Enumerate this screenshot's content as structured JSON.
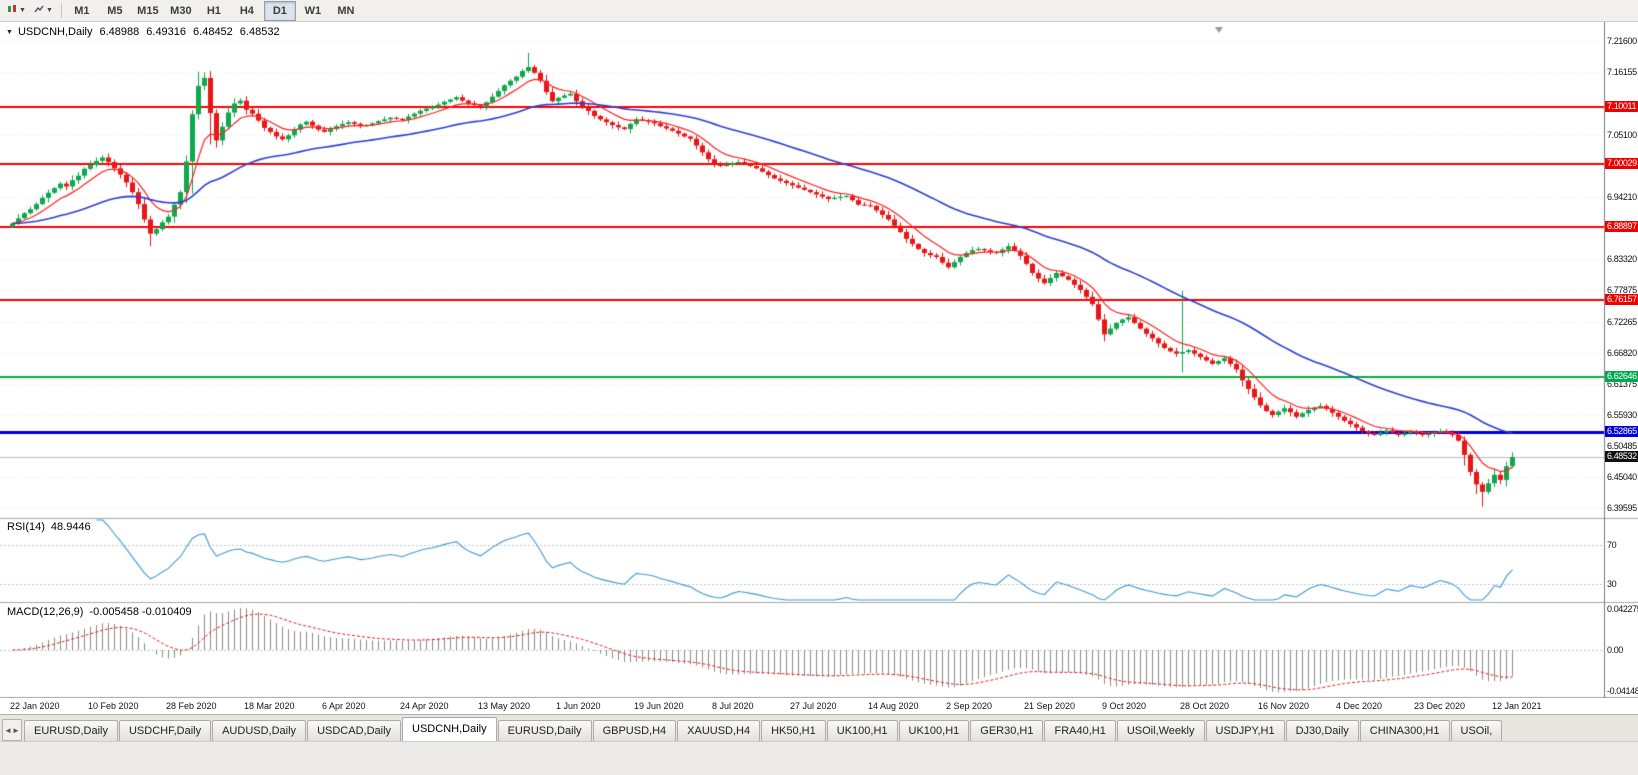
{
  "toolbar": {
    "timeframes": [
      {
        "label": "M1",
        "active": false
      },
      {
        "label": "M5",
        "active": false
      },
      {
        "label": "M15",
        "active": false
      },
      {
        "label": "M30",
        "active": false
      },
      {
        "label": "H1",
        "active": false
      },
      {
        "label": "H4",
        "active": false
      },
      {
        "label": "D1",
        "active": true
      },
      {
        "label": "W1",
        "active": false
      },
      {
        "label": "MN",
        "active": false
      }
    ]
  },
  "chart_header": {
    "dropdown_icon": "▼",
    "symbol": "USDCNH,Daily",
    "open": "6.48988",
    "high": "6.49316",
    "low": "6.48452",
    "close": "6.48532"
  },
  "price_axis": {
    "ticks": [
      "7.21600",
      "7.16155",
      "7.05100",
      "6.94210",
      "6.83320",
      "6.77875",
      "6.72265",
      "6.66820",
      "6.61375",
      "6.55930",
      "6.50485",
      "6.45040",
      "6.39595"
    ],
    "tags": [
      {
        "label": "7.10011",
        "value": 7.10011,
        "bg": "#ee0000",
        "kind": "level"
      },
      {
        "label": "7.00029",
        "value": 7.00029,
        "bg": "#ee0000",
        "kind": "level"
      },
      {
        "label": "6.88897",
        "value": 6.88897,
        "bg": "#ee0000",
        "kind": "level"
      },
      {
        "label": "6.76157",
        "value": 6.76157,
        "bg": "#ee0000",
        "kind": "level"
      },
      {
        "label": "6.62646",
        "value": 6.62646,
        "bg": "#00a94f",
        "kind": "level"
      },
      {
        "label": "6.52865",
        "value": 6.52865,
        "bg": "#0000dc",
        "kind": "level"
      },
      {
        "label": "6.48532",
        "value": 6.48532,
        "bg": "#101010",
        "kind": "current"
      }
    ]
  },
  "chart_data": {
    "type": "candlestick",
    "symbol": "USDCNH",
    "timeframe": "Daily",
    "ohlc_current": {
      "open": 6.48988,
      "high": 6.49316,
      "low": 6.48452,
      "close": 6.48532
    },
    "bid": 6.48532,
    "ylim": [
      6.385,
      7.245
    ],
    "x_labels": [
      "22 Jan 2020",
      "10 Feb 2020",
      "28 Feb 2020",
      "18 Mar 2020",
      "6 Apr 2020",
      "24 Apr 2020",
      "13 May 2020",
      "1 Jun 2020",
      "19 Jun 2020",
      "8 Jul 2020",
      "27 Jul 2020",
      "14 Aug 2020",
      "2 Sep 2020",
      "21 Sep 2020",
      "9 Oct 2020",
      "28 Oct 2020",
      "16 Nov 2020",
      "4 Dec 2020",
      "23 Dec 2020",
      "12 Jan 2021"
    ],
    "x_label_indices": [
      0,
      13,
      26,
      39,
      52,
      65,
      78,
      91,
      104,
      117,
      130,
      143,
      156,
      169,
      182,
      195,
      208,
      221,
      234,
      247
    ],
    "closes": [
      6.896,
      6.905,
      6.914,
      6.921,
      6.93,
      6.941,
      6.95,
      6.958,
      6.966,
      6.961,
      6.972,
      6.98,
      6.992,
      6.999,
      7.006,
      7.012,
      7.004,
      6.993,
      6.982,
      6.968,
      6.951,
      6.93,
      6.903,
      6.878,
      6.886,
      6.898,
      6.908,
      6.929,
      6.951,
      7.005,
      7.088,
      7.138,
      7.152,
      7.09,
      7.042,
      7.066,
      7.091,
      7.107,
      7.112,
      7.096,
      7.089,
      7.077,
      7.064,
      7.057,
      7.049,
      7.044,
      7.051,
      7.061,
      7.07,
      7.075,
      7.068,
      7.061,
      7.057,
      7.062,
      7.067,
      7.071,
      7.074,
      7.071,
      7.067,
      7.069,
      7.072,
      7.076,
      7.079,
      7.082,
      7.08,
      7.078,
      7.084,
      7.089,
      7.094,
      7.098,
      7.101,
      7.105,
      7.11,
      7.114,
      7.118,
      7.112,
      7.107,
      7.104,
      7.101,
      7.109,
      7.119,
      7.129,
      7.139,
      7.147,
      7.154,
      7.164,
      7.171,
      7.161,
      7.147,
      7.127,
      7.111,
      7.117,
      7.121,
      7.124,
      7.111,
      7.101,
      7.094,
      7.085,
      7.079,
      7.074,
      7.069,
      7.065,
      7.062,
      7.071,
      7.079,
      7.077,
      7.075,
      7.072,
      7.067,
      7.063,
      7.059,
      7.054,
      7.049,
      7.045,
      7.033,
      7.021,
      7.009,
      7.001,
      6.997,
      6.999,
      7.002,
      7.004,
      7.001,
      6.997,
      6.993,
      6.987,
      6.981,
      6.975,
      6.971,
      6.967,
      6.963,
      6.959,
      6.955,
      6.951,
      6.947,
      6.943,
      6.939,
      6.941,
      6.943,
      6.944,
      6.937,
      6.929,
      6.928,
      6.927,
      6.919,
      6.911,
      6.903,
      6.892,
      6.881,
      6.869,
      6.86,
      6.851,
      6.844,
      6.84,
      6.837,
      6.827,
      6.819,
      6.828,
      6.837,
      6.844,
      6.849,
      6.851,
      6.849,
      6.846,
      6.844,
      6.85,
      6.856,
      6.848,
      6.839,
      6.825,
      6.809,
      6.799,
      6.791,
      6.8,
      6.809,
      6.803,
      6.797,
      6.788,
      6.779,
      6.767,
      6.754,
      6.727,
      6.701,
      6.711,
      6.721,
      6.727,
      6.731,
      6.721,
      6.711,
      6.702,
      6.694,
      6.685,
      6.677,
      6.671,
      6.667,
      6.67,
      6.673,
      6.667,
      6.661,
      6.655,
      6.649,
      6.654,
      6.659,
      6.649,
      6.639,
      6.62,
      6.605,
      6.59,
      6.576,
      6.566,
      6.559,
      6.565,
      6.571,
      6.564,
      6.556,
      6.562,
      6.568,
      6.572,
      6.575,
      6.57,
      6.563,
      6.556,
      6.549,
      6.543,
      6.537,
      6.531,
      6.527,
      6.524,
      6.528,
      6.532,
      6.528,
      6.524,
      6.527,
      6.53,
      6.527,
      6.524,
      6.526,
      6.529,
      6.531,
      6.528,
      6.524,
      6.514,
      6.489,
      6.459,
      6.437,
      6.424,
      6.439,
      6.454,
      6.445,
      6.469,
      6.48532
    ],
    "wick_overrides": [
      {
        "i": 23,
        "low": 6.856
      },
      {
        "i": 30,
        "high": 7.095,
        "low": 6.948
      },
      {
        "i": 31,
        "high": 7.163
      },
      {
        "i": 32,
        "high": 7.162
      },
      {
        "i": 33,
        "low": 7.035
      },
      {
        "i": 86,
        "high": 7.196
      },
      {
        "i": 195,
        "high": 6.778,
        "low": 6.634
      },
      {
        "i": 242,
        "low": 6.47
      },
      {
        "i": 244,
        "low": 6.42
      },
      {
        "i": 245,
        "low": 6.398
      }
    ],
    "colors": {
      "up": "#0fa84e",
      "down": "#e81717"
    },
    "hlines": [
      {
        "value": 7.10011,
        "color": "#ff0000",
        "width": 2
      },
      {
        "value": 7.00029,
        "color": "#ff0000",
        "width": 2
      },
      {
        "value": 6.88897,
        "color": "#ff0000",
        "width": 2
      },
      {
        "value": 6.76157,
        "color": "#ff0000",
        "width": 2
      },
      {
        "value": 6.62646,
        "color": "#00b43c",
        "width": 2
      },
      {
        "value": 6.52865,
        "color": "#0000dc",
        "width": 3
      }
    ],
    "indicators": {
      "ma_fast": {
        "period": 8,
        "color": "#ff2222"
      },
      "ma_slow": {
        "period": 40,
        "color": "#2b3fd4"
      },
      "rsi": {
        "name": "RSI(14)",
        "value_label": "48.9446",
        "period": 14,
        "levels": [
          70,
          30
        ],
        "color": "#3f9bd8"
      },
      "macd": {
        "name": "MACD(12,26,9)",
        "value_label": "-0.005458 -0.010409",
        "fast": 12,
        "slow": 26,
        "signal": 9,
        "axis_labels": [
          {
            "label": "0.042275",
            "value": 0.042275
          },
          {
            "label": "0.00",
            "value": 0
          },
          {
            "label": "-0.04148",
            "value": -0.04148
          }
        ],
        "histogram_color": "#8c8c8c",
        "signal_color": "#e02020"
      }
    }
  },
  "tabs": [
    {
      "label": "EURUSD,Daily",
      "active": false
    },
    {
      "label": "USDCHF,Daily",
      "active": false
    },
    {
      "label": "AUDUSD,Daily",
      "active": false
    },
    {
      "label": "USDCAD,Daily",
      "active": false
    },
    {
      "label": "USDCNH,Daily",
      "active": true
    },
    {
      "label": "EURUSD,Daily",
      "active": false
    },
    {
      "label": "GBPUSD,H4",
      "active": false
    },
    {
      "label": "XAUUSD,H4",
      "active": false
    },
    {
      "label": "HK50,H1",
      "active": false
    },
    {
      "label": "UK100,H1",
      "active": false
    },
    {
      "label": "UK100,H1",
      "active": false
    },
    {
      "label": "GER30,H1",
      "active": false
    },
    {
      "label": "FRA40,H1",
      "active": false
    },
    {
      "label": "USOil,Weekly",
      "active": false
    },
    {
      "label": "USDJPY,H1",
      "active": false
    },
    {
      "label": "DJ30,Daily",
      "active": false
    },
    {
      "label": "CHINA300,H1",
      "active": false
    },
    {
      "label": "USOil,",
      "active": false
    }
  ]
}
